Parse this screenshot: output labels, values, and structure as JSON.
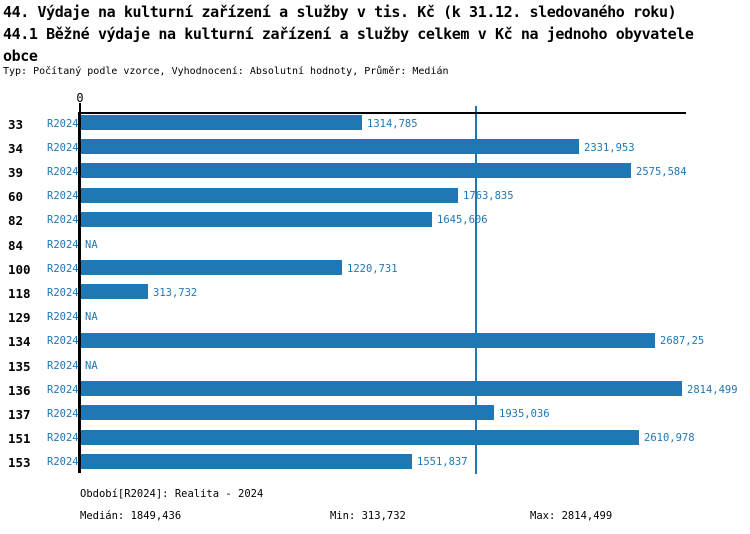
{
  "header": {
    "title_line1": "44. Výdaje na kulturní zařízení a služby v tis. Kč (k 31.12. sledovaného roku)",
    "title_line2": "44.1 Běžné výdaje na kulturní zařízení a služby celkem v Kč na jednoho obyvatele",
    "title_line3": "obce",
    "meta": "Typ: Počítaný podle vzorce, Vyhodnocení: Absolutní hodnoty, Průměr: Medián"
  },
  "chart_data": {
    "type": "bar",
    "orientation": "horizontal",
    "title": "44.1 Běžné výdaje na kulturní zařízení a služby celkem v Kč na jednoho obyvatele obce",
    "categories": [
      "33",
      "34",
      "39",
      "60",
      "82",
      "84",
      "100",
      "118",
      "129",
      "134",
      "135",
      "136",
      "137",
      "151",
      "153"
    ],
    "series": [
      {
        "name": "R2024",
        "values": [
          1314.785,
          2331.953,
          2575.584,
          1763.835,
          1645.606,
          null,
          1220.731,
          313.732,
          null,
          2687.25,
          null,
          2814.499,
          1935.036,
          2610.978,
          1551.837
        ],
        "value_labels": [
          "1314,785",
          "2331,953",
          "2575,584",
          "1763,835",
          "1645,606",
          "NA",
          "1220,731",
          "313,732",
          "NA",
          "2687,25",
          "NA",
          "2814,499",
          "1935,036",
          "2610,978",
          "1551,837"
        ]
      }
    ],
    "na_label": "NA",
    "axis_origin_label": "0",
    "xlim": [
      0,
      2833
    ],
    "median_value": 1849.436,
    "grid": false,
    "legend_position": "none",
    "bar_color": "#1f77b4",
    "median_line_color": "#1f77b4",
    "label_color": "#1f77b4"
  },
  "footer": {
    "period": "Období[R2024]: Realita - 2024",
    "median": "Medián: 1849,436",
    "min": "Min: 313,732",
    "max": "Max: 2814,499"
  },
  "colors": {
    "accent": "#1f77b4",
    "axis": "#000000",
    "background": "#ffffff"
  }
}
